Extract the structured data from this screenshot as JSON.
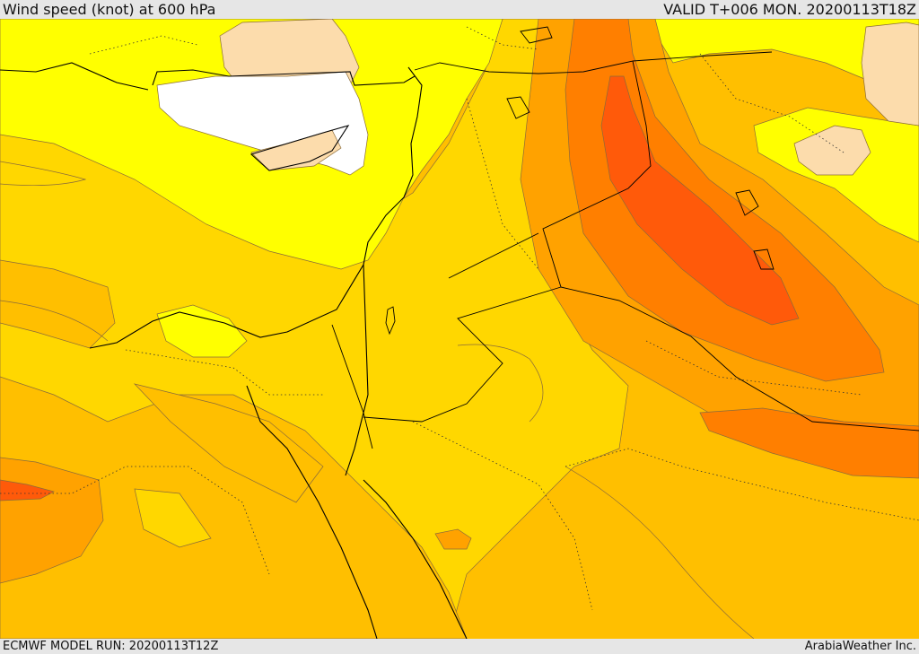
{
  "header": {
    "title": "Wind speed (knot) at 600 hPa",
    "valid_time": "VALID T+006 MON. 20200113T18Z"
  },
  "footer": {
    "model_run": "ECMWF MODEL RUN: 20200113T12Z",
    "credit": "ArabiaWeather Inc."
  },
  "colors": {
    "white": "#ffffff",
    "peach": "#fcdcac",
    "yellow": "#ffff00",
    "gold": "#ffd700",
    "amber": "#ffbf00",
    "orange": "#ffa200",
    "dark_orange": "#ff7f00",
    "red_orange": "#ff5a0a",
    "contour": "#8a6b3a",
    "coast": "#000000"
  }
}
